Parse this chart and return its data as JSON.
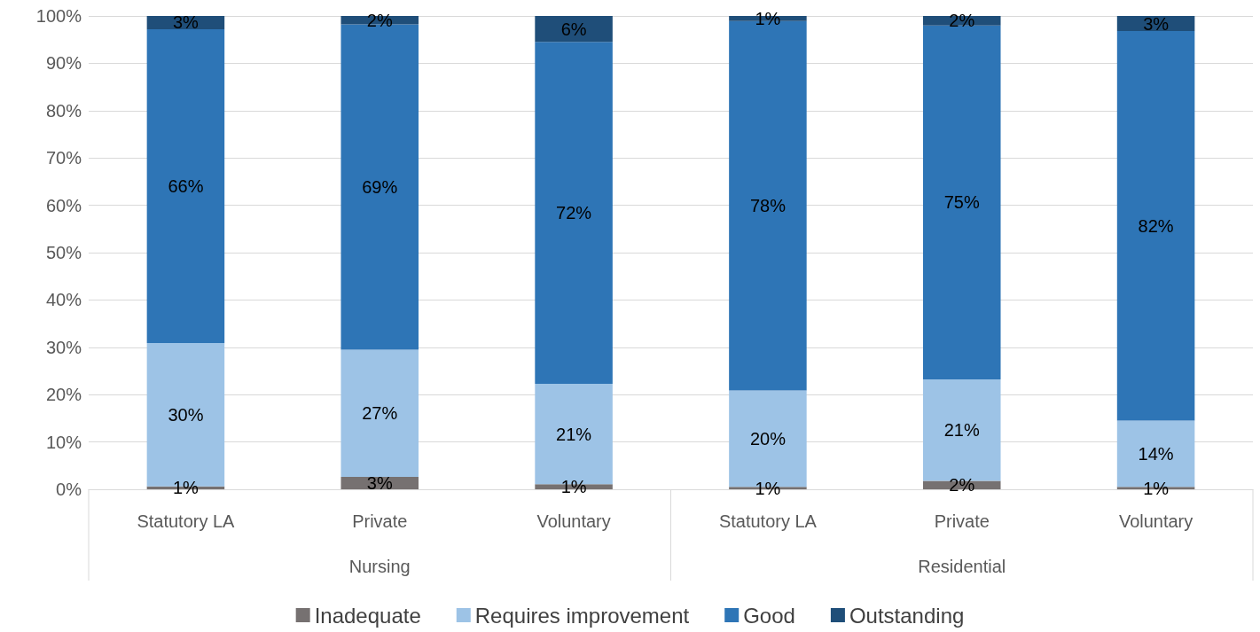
{
  "chart_data": {
    "type": "bar",
    "stacked": true,
    "categories": [
      "Statutory LA",
      "Private",
      "Voluntary",
      "Statutory LA",
      "Private",
      "Voluntary"
    ],
    "annotations": [
      "Nursing",
      "Residential"
    ],
    "series": [
      {
        "name": "Inadequate",
        "color": "#767171",
        "values": [
          0.6,
          2.6,
          1.1,
          0.5,
          1.8,
          0.5
        ],
        "value_labels": [
          "1%",
          "3%",
          "1%",
          "1%",
          "2%",
          "1%"
        ]
      },
      {
        "name": "Requires improvement",
        "color": "#9dc3e6",
        "values": [
          30.3,
          26.9,
          21.2,
          20.4,
          21.4,
          14.0
        ],
        "value_labels": [
          "30%",
          "27%",
          "21%",
          "20%",
          "21%",
          "14%"
        ]
      },
      {
        "name": "Good",
        "color": "#2e75b6",
        "values": [
          66.3,
          68.7,
          72.2,
          78.0,
          74.8,
          82.3
        ],
        "value_labels": [
          "66%",
          "69%",
          "72%",
          "78%",
          "75%",
          "82%"
        ]
      },
      {
        "name": "Outstanding",
        "color": "#1f4e79",
        "values": [
          2.8,
          1.8,
          5.5,
          1.1,
          2.0,
          3.2
        ],
        "value_labels": [
          "3%",
          "2%",
          "6%",
          "1%",
          "2%",
          "3%"
        ]
      }
    ],
    "ylim": [
      0,
      100
    ],
    "yticks": [
      {
        "value": 0,
        "label": "0%"
      },
      {
        "value": 10,
        "label": "10%"
      },
      {
        "value": 20,
        "label": "20%"
      },
      {
        "value": 30,
        "label": "30%"
      },
      {
        "value": 40,
        "label": "40%"
      },
      {
        "value": 50,
        "label": "50%"
      },
      {
        "value": 60,
        "label": "60%"
      },
      {
        "value": 70,
        "label": "70%"
      },
      {
        "value": 80,
        "label": "80%"
      },
      {
        "value": 90,
        "label": "90%"
      },
      {
        "value": 100,
        "label": "100%"
      }
    ],
    "grid": "y",
    "legend": "bottom"
  }
}
